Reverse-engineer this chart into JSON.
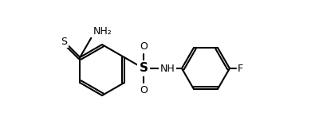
{
  "bg_color": "#ffffff",
  "line_color": "#000000",
  "atom_colors": {
    "S_thio": "#000000",
    "O": "#000000",
    "N": "#000000",
    "F": "#000000",
    "H": "#000000"
  },
  "atom_labels": {
    "NH2": "NH₂",
    "S_thio": "S",
    "S_sulfonyl": "S",
    "O_top": "O",
    "O_bot": "O",
    "NH": "NH",
    "F": "F"
  },
  "figsize": [
    3.95,
    1.76
  ],
  "dpi": 100
}
